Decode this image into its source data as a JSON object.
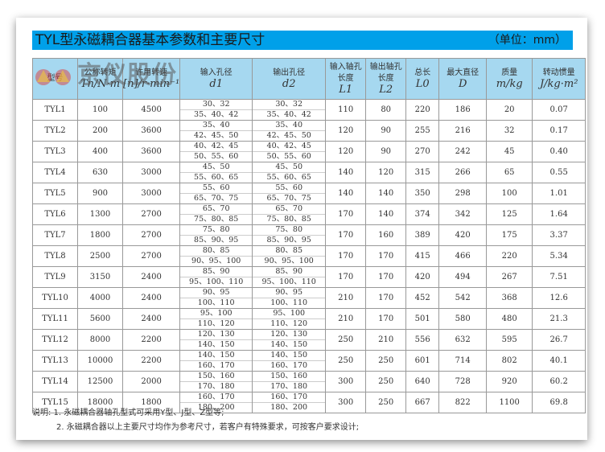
{
  "title": "TYL型永磁耦合器基本参数和主要尺寸",
  "unit": "（单位：mm）",
  "watermark": "京仪股份",
  "colors": {
    "title_bar": "#00a0e9",
    "header": "#a6d8f0"
  },
  "headers": [
    {
      "cn": "型号",
      "sym": ""
    },
    {
      "cn": "公称转矩",
      "sym": "Tn/N·m"
    },
    {
      "cn": "许用转速",
      "sym": "[n]/r·min⁻¹"
    },
    {
      "cn": "输入孔径",
      "sym": "d1"
    },
    {
      "cn": "输出孔径",
      "sym": "d2"
    },
    {
      "cn": "输入轴孔长度",
      "sym": "L1"
    },
    {
      "cn": "输出轴孔长度",
      "sym": "L2"
    },
    {
      "cn": "总长",
      "sym": "L0"
    },
    {
      "cn": "最大直径",
      "sym": "D"
    },
    {
      "cn": "质量",
      "sym": "m/kg"
    },
    {
      "cn": "转动惯量",
      "sym": "J/kg·m²"
    }
  ],
  "rows": [
    {
      "model": "TYL1",
      "tn": "100",
      "n": "4500",
      "d1": [
        "30、32",
        "35、40、42"
      ],
      "d2": [
        "30、32",
        "35、40、42"
      ],
      "l1": "110",
      "l2": "80",
      "l0": "220",
      "D": "186",
      "m": "20",
      "j": "0.07"
    },
    {
      "model": "TYL2",
      "tn": "200",
      "n": "3600",
      "d1": [
        "35、40",
        "42、45、50"
      ],
      "d2": [
        "35、40",
        "42、45、50"
      ],
      "l1": "120",
      "l2": "90",
      "l0": "255",
      "D": "216",
      "m": "32",
      "j": "0.17"
    },
    {
      "model": "TYL3",
      "tn": "400",
      "n": "3600",
      "d1": [
        "40、42、45",
        "50、55、60"
      ],
      "d2": [
        "40、42、45",
        "50、55、60"
      ],
      "l1": "120",
      "l2": "90",
      "l0": "270",
      "D": "242",
      "m": "45",
      "j": "0.40"
    },
    {
      "model": "TYL4",
      "tn": "630",
      "n": "3000",
      "d1": [
        "45、50",
        "55、60、65"
      ],
      "d2": [
        "45、50",
        "55、60、65"
      ],
      "l1": "140",
      "l2": "120",
      "l0": "315",
      "D": "266",
      "m": "65",
      "j": "0.55"
    },
    {
      "model": "TYL5",
      "tn": "900",
      "n": "3000",
      "d1": [
        "55、60",
        "65、70、75"
      ],
      "d2": [
        "55、60",
        "65、70、75"
      ],
      "l1": "140",
      "l2": "140",
      "l0": "350",
      "D": "298",
      "m": "100",
      "j": "1.01"
    },
    {
      "model": "TYL6",
      "tn": "1300",
      "n": "2700",
      "d1": [
        "65、70",
        "75、80、85"
      ],
      "d2": [
        "65、70",
        "75、80、85"
      ],
      "l1": "170",
      "l2": "140",
      "l0": "374",
      "D": "342",
      "m": "125",
      "j": "1.64"
    },
    {
      "model": "TYL7",
      "tn": "1800",
      "n": "2700",
      "d1": [
        "75、80",
        "85、90、95"
      ],
      "d2": [
        "75、80",
        "85、90、95"
      ],
      "l1": "170",
      "l2": "160",
      "l0": "389",
      "D": "420",
      "m": "175",
      "j": "3.37"
    },
    {
      "model": "TYL8",
      "tn": "2500",
      "n": "2700",
      "d1": [
        "80、85",
        "90、95、100"
      ],
      "d2": [
        "80、85",
        "90、95、100"
      ],
      "l1": "170",
      "l2": "170",
      "l0": "415",
      "D": "466",
      "m": "220",
      "j": "5.34"
    },
    {
      "model": "TYL9",
      "tn": "3150",
      "n": "2400",
      "d1": [
        "85、90",
        "95、100、110"
      ],
      "d2": [
        "85、90",
        "95、100、110"
      ],
      "l1": "170",
      "l2": "170",
      "l0": "420",
      "D": "494",
      "m": "267",
      "j": "7.51"
    },
    {
      "model": "TYL10",
      "tn": "4000",
      "n": "2400",
      "d1": [
        "90、95",
        "100、110"
      ],
      "d2": [
        "90、95",
        "100、110"
      ],
      "l1": "210",
      "l2": "170",
      "l0": "452",
      "D": "542",
      "m": "368",
      "j": "12.6"
    },
    {
      "model": "TYL11",
      "tn": "5600",
      "n": "2400",
      "d1": [
        "95、100",
        "110、120"
      ],
      "d2": [
        "95、100",
        "110、120"
      ],
      "l1": "210",
      "l2": "170",
      "l0": "501",
      "D": "580",
      "m": "480",
      "j": "21.3"
    },
    {
      "model": "TYL12",
      "tn": "8000",
      "n": "2200",
      "d1": [
        "120、130",
        "140、150"
      ],
      "d2": [
        "120、130",
        "140、150"
      ],
      "l1": "250",
      "l2": "210",
      "l0": "556",
      "D": "632",
      "m": "595",
      "j": "26.7"
    },
    {
      "model": "TYL13",
      "tn": "10000",
      "n": "2200",
      "d1": [
        "140、150",
        "160、170"
      ],
      "d2": [
        "140、150",
        "160、170"
      ],
      "l1": "250",
      "l2": "250",
      "l0": "601",
      "D": "714",
      "m": "802",
      "j": "40.1"
    },
    {
      "model": "TYL14",
      "tn": "12500",
      "n": "2000",
      "d1": [
        "150、160",
        "170、180"
      ],
      "d2": [
        "150、160",
        "170、180"
      ],
      "l1": "300",
      "l2": "250",
      "l0": "640",
      "D": "728",
      "m": "920",
      "j": "60.2"
    },
    {
      "model": "TYL15",
      "tn": "18000",
      "n": "1800",
      "d1": [
        "160、170",
        "180、200"
      ],
      "d2": [
        "160、170",
        "180、200"
      ],
      "l1": "300",
      "l2": "250",
      "l0": "667",
      "D": "822",
      "m": "1100",
      "j": "69.8"
    }
  ],
  "notes": [
    "说明: 1. 永磁耦合器轴孔型式可采用Y型、J型、Z型等;",
    "2. 永磁耦合器以上主要尺寸均作为参考尺寸，若客户有特殊要求，可按客户要求设计;"
  ]
}
